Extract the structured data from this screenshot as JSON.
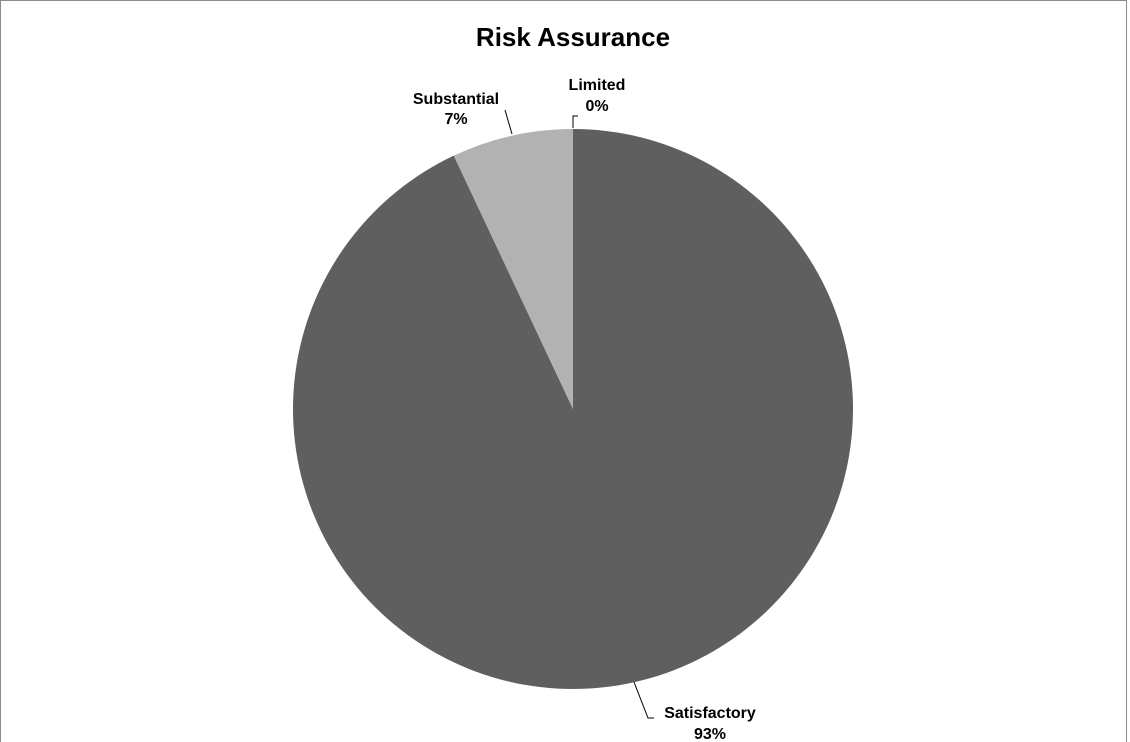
{
  "chart_data": {
    "type": "pie",
    "title": "Risk Assurance",
    "slices": [
      {
        "label": "Satisfactory",
        "value": 93,
        "value_label": "93%",
        "color": "#5f5f5f"
      },
      {
        "label": "Substantial",
        "value": 7,
        "value_label": "7%",
        "color": "#b2b2b2"
      },
      {
        "label": "Limited",
        "value": 0,
        "value_label": "0%",
        "color": "#d9d9d9"
      }
    ],
    "start_angle": "12 o'clock",
    "direction": "clockwise",
    "legend": "none",
    "data_labels": "outside with leader lines"
  }
}
